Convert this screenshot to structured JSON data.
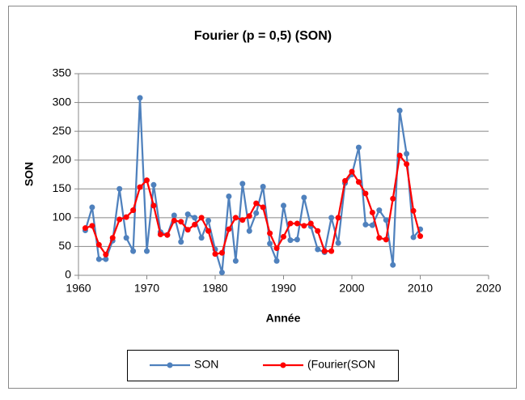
{
  "chart_data": {
    "type": "line",
    "title": "Fourier (p  = 0,5) (SON)",
    "x_label": "Année",
    "y_label": "SON",
    "x": [
      1961,
      1962,
      1963,
      1964,
      1965,
      1966,
      1967,
      1968,
      1969,
      1970,
      1971,
      1972,
      1973,
      1974,
      1975,
      1976,
      1977,
      1978,
      1979,
      1980,
      1981,
      1982,
      1983,
      1984,
      1985,
      1986,
      1987,
      1988,
      1989,
      1990,
      1991,
      1992,
      1993,
      1994,
      1995,
      1996,
      1997,
      1998,
      1999,
      2000,
      2001,
      2002,
      2003,
      2004,
      2005,
      2006,
      2007,
      2008,
      2009,
      2010
    ],
    "series": [
      {
        "name": "SON",
        "color": "#4f81bd",
        "values": [
          78,
          118,
          28,
          28,
          60,
          150,
          65,
          42,
          308,
          42,
          157,
          75,
          70,
          104,
          58,
          106,
          100,
          65,
          95,
          45,
          5,
          137,
          25,
          159,
          77,
          108,
          154,
          55,
          25,
          121,
          61,
          62,
          135,
          85,
          45,
          40,
          100,
          56,
          160,
          175,
          222,
          88,
          87,
          113,
          96,
          18,
          286,
          211,
          66,
          80
        ]
      },
      {
        "name": "(Fourier(SON",
        "color": "#ff0000",
        "values": [
          82,
          86,
          53,
          36,
          65,
          97,
          101,
          113,
          153,
          165,
          121,
          71,
          70,
          95,
          93,
          79,
          88,
          100,
          77,
          37,
          39,
          80,
          100,
          96,
          103,
          125,
          118,
          73,
          47,
          67,
          90,
          90,
          86,
          90,
          77,
          42,
          42,
          100,
          164,
          180,
          162,
          142,
          109,
          65,
          62,
          133,
          208,
          193,
          112,
          68
        ]
      }
    ],
    "xlim": [
      1960,
      2020
    ],
    "xticks": [
      1960,
      1970,
      1980,
      1990,
      2000,
      2010,
      2020
    ],
    "ylim": [
      0,
      350
    ],
    "yticks": [
      0,
      50,
      100,
      150,
      200,
      250,
      300,
      350
    ],
    "grid": true,
    "legend": "bottom"
  }
}
